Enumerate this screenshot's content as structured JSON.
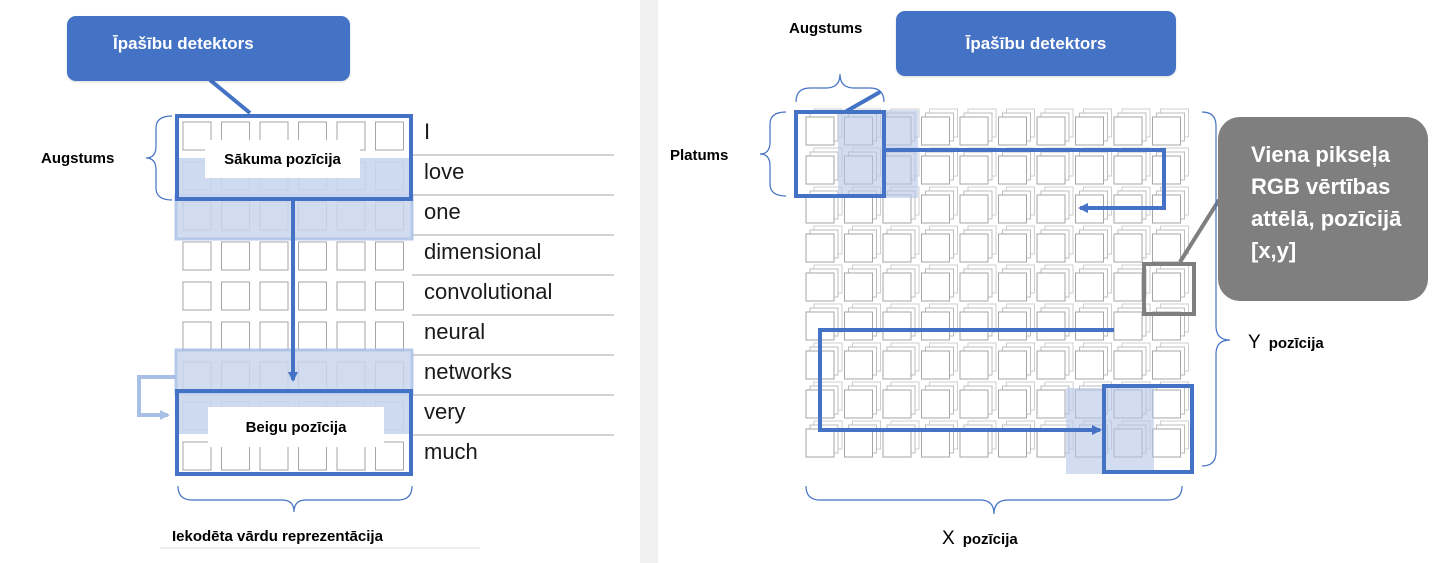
{
  "left": {
    "callout": "Īpašību detektors",
    "height_label": "Augstums",
    "start_label": "Sākuma pozīcija",
    "end_label": "Beigu pozīcija",
    "bottom_label": "Iekodēta vārdu reprezentācija",
    "words": [
      "I",
      "love",
      "one",
      "dimensional",
      "convolutional",
      "neural",
      "networks",
      "very",
      "much"
    ]
  },
  "right": {
    "callout": "Īpašību detektors",
    "height_label": "Augstums",
    "width_label": "Platums",
    "pixel_callout": [
      "Viena pikseļa",
      "RGB vērtības",
      "attēlā, pozīcijā",
      "[x,y]"
    ],
    "y_letter": "Y",
    "y_label": "pozīcija",
    "x_letter": "X",
    "x_label": "pozīcija"
  },
  "colors": {
    "accent": "#4472c4",
    "highlight": "#c9d6ee",
    "pale": "#b4c7e7",
    "gray": "#7f7f7f"
  }
}
